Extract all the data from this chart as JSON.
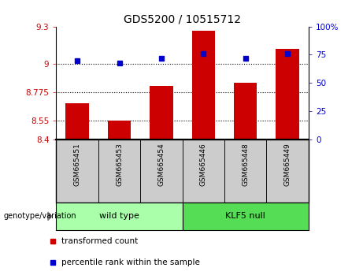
{
  "title": "GDS5200 / 10515712",
  "categories": [
    "GSM665451",
    "GSM665453",
    "GSM665454",
    "GSM665446",
    "GSM665448",
    "GSM665449"
  ],
  "bar_values": [
    8.69,
    8.55,
    8.825,
    9.265,
    8.855,
    9.12
  ],
  "percentile_values": [
    70,
    68,
    72,
    76,
    72,
    76
  ],
  "bar_color": "#cc0000",
  "dot_color": "#0000cc",
  "ylim_left": [
    8.4,
    9.3
  ],
  "ylim_right": [
    0,
    100
  ],
  "yticks_left": [
    8.4,
    8.55,
    8.775,
    9.0,
    9.3
  ],
  "yticks_right": [
    0,
    25,
    50,
    75,
    100
  ],
  "ytick_labels_left": [
    "8.4",
    "8.55",
    "8.775",
    "9",
    "9.3"
  ],
  "ytick_labels_right": [
    "0",
    "25",
    "50",
    "75",
    "100%"
  ],
  "hlines": [
    9.0,
    8.775,
    8.55
  ],
  "group1_label": "wild type",
  "group2_label": "KLF5 null",
  "group_label_prefix": "genotype/variation",
  "group1_color": "#aaffaa",
  "group2_color": "#55dd55",
  "legend_bar_label": "transformed count",
  "legend_dot_label": "percentile rank within the sample",
  "bar_width": 0.55,
  "label_bg_color": "#cccccc",
  "xlim": [
    -0.5,
    5.5
  ]
}
